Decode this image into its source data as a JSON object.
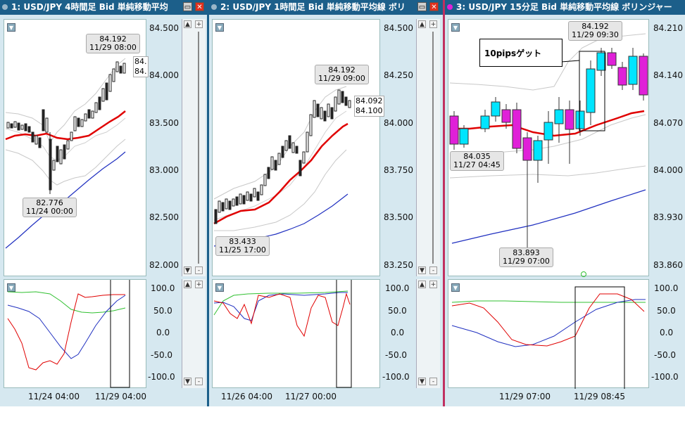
{
  "panels": [
    {
      "title": "1: USD/JPY 4時間足 Bid 単純移動平均",
      "y_ticks": [
        "84.500",
        "84.000",
        "83.500",
        "83.000",
        "82.500",
        "82.000"
      ],
      "osc_ticks": [
        "100.0",
        "50.0",
        "0.0",
        "-50.0",
        "-100.0"
      ],
      "x_labels": [
        "11/24 04:00",
        "11/29 04:00"
      ],
      "callouts": [
        {
          "price": "84.192",
          "time": "11/29 08:00"
        },
        {
          "price": "82.776",
          "time": "11/24 00:00"
        }
      ],
      "edge_labels": [
        "84.",
        "84."
      ]
    },
    {
      "title": "2: USD/JPY 1時間足 Bid 単純移動平均線 ボリ",
      "y_ticks": [
        "84.500",
        "84.250",
        "84.000",
        "83.750",
        "83.500",
        "83.250"
      ],
      "osc_ticks": [
        "100.0",
        "50.0",
        "0.0",
        "-50.0",
        "-100.0"
      ],
      "x_labels": [
        "11/26 04:00",
        "11/27 00:00"
      ],
      "callouts": [
        {
          "price": "84.192",
          "time": "11/29 09:00"
        },
        {
          "price": "83.433",
          "time": "11/25 17:00"
        }
      ],
      "edge_labels": [
        "84.092",
        "84.100"
      ]
    },
    {
      "title": "3: USD/JPY 15分足 Bid 単純移動平均線 ボリンジャー",
      "y_ticks": [
        "84.210",
        "84.140",
        "84.070",
        "84.000",
        "83.930",
        "83.860"
      ],
      "osc_ticks": [
        "100.0",
        "50.0",
        "0.0",
        "-50.0",
        "-100.0"
      ],
      "x_labels": [
        "11/29 07:00",
        "11/29 08:45"
      ],
      "callouts": [
        {
          "price": "84.192",
          "time": "11/29 09:30"
        },
        {
          "price": "84.035",
          "time": "11/27 04:45"
        },
        {
          "price": "83.893",
          "time": "11/29 07:00"
        }
      ],
      "annotation": "10pipsゲット"
    }
  ],
  "colors": {
    "title_bg": "#1c5f8a",
    "up": "#00e5ff",
    "down": "#e020d8",
    "ma_red": "#e00000",
    "ma_blue": "#2030c0",
    "stoch_green": "#30c030"
  }
}
